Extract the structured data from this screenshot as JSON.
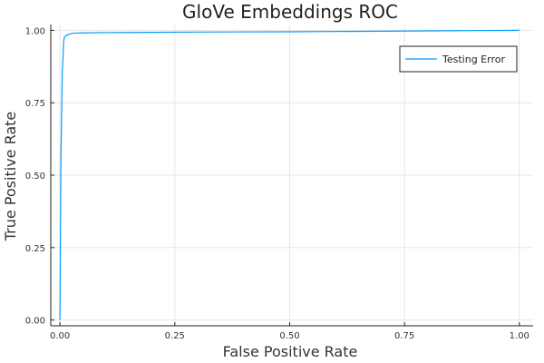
{
  "chart_data": {
    "type": "line",
    "title": "GloVe Embeddings ROC",
    "xlabel": "False Positive Rate",
    "ylabel": "True Positive Rate",
    "xlim": [
      -0.02,
      1.03
    ],
    "ylim": [
      -0.02,
      1.02
    ],
    "xticks": [
      0.0,
      0.25,
      0.5,
      0.75,
      1.0
    ],
    "xtick_labels": [
      "0.00",
      "0.25",
      "0.50",
      "0.75",
      "1.00"
    ],
    "yticks": [
      0.0,
      0.25,
      0.5,
      0.75,
      1.0
    ],
    "ytick_labels": [
      "0.00",
      "0.25",
      "0.50",
      "0.75",
      "1.00"
    ],
    "grid": true,
    "legend_position": "top-right",
    "series": [
      {
        "name": "Testing Error",
        "color": "#009AFA",
        "x": [
          0.0,
          0.002,
          0.005,
          0.008,
          0.01,
          0.015,
          0.02,
          0.03,
          0.05,
          0.1,
          0.2,
          0.3,
          0.5,
          0.7,
          0.9,
          1.0
        ],
        "y": [
          0.0,
          0.55,
          0.85,
          0.96,
          0.978,
          0.983,
          0.987,
          0.99,
          0.991,
          0.992,
          0.993,
          0.994,
          0.995,
          0.997,
          0.999,
          1.0
        ]
      }
    ]
  }
}
